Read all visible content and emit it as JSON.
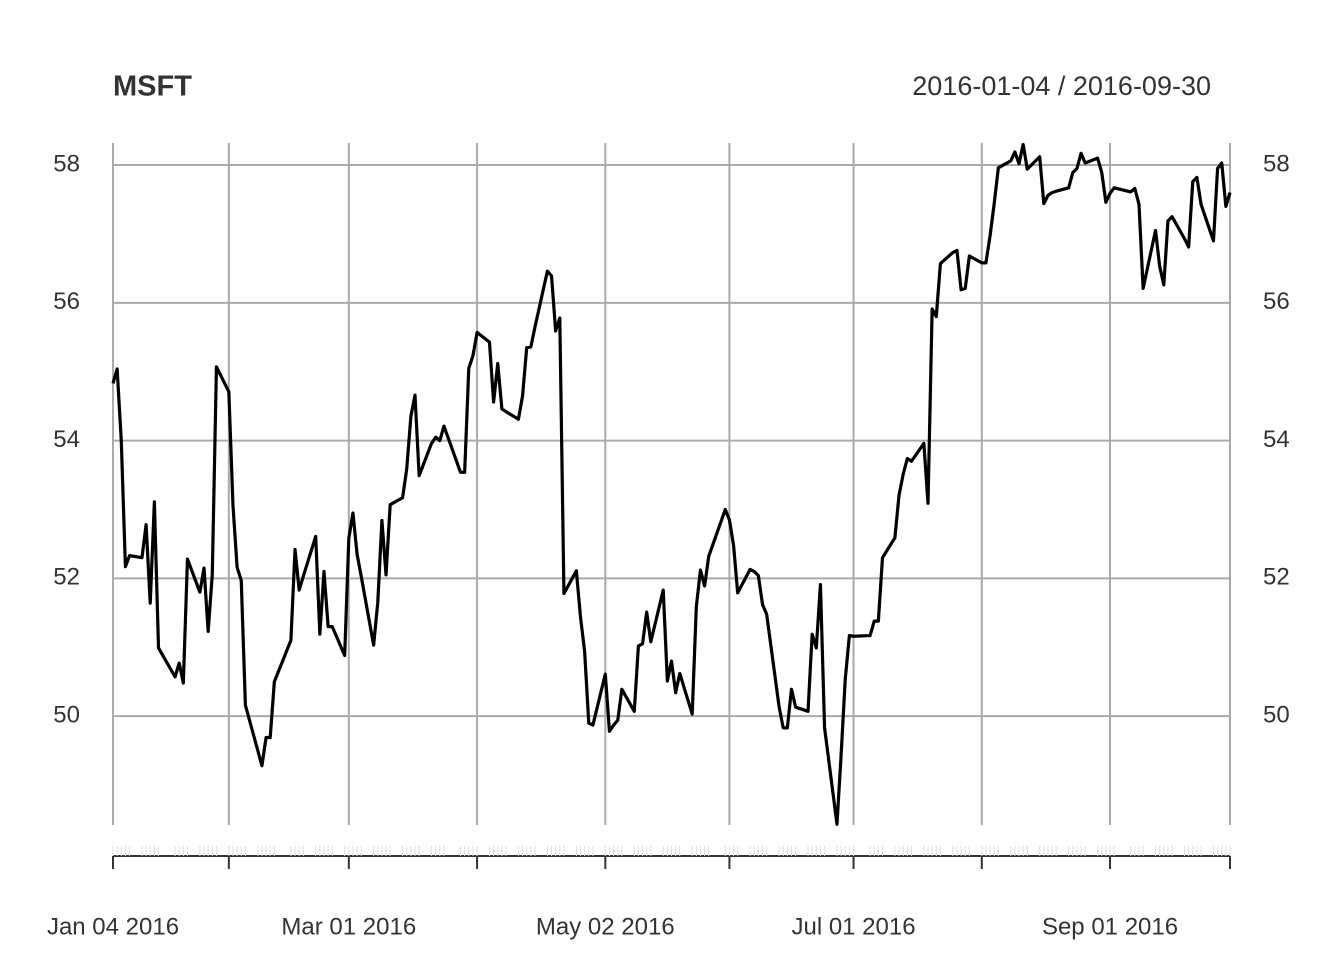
{
  "chart_data": {
    "type": "line",
    "title": "MSFT",
    "subtitle": "2016-01-04 / 2016-09-30",
    "color": "#000000",
    "grid": true,
    "xlim": [
      "2016-01-04",
      "2016-09-30"
    ],
    "xticks": [
      {
        "value": "2016-01-04",
        "label": "Jan 04 2016"
      },
      {
        "value": "2016-02-01"
      },
      {
        "value": "2016-03-01",
        "label": "Mar 01 2016"
      },
      {
        "value": "2016-04-01"
      },
      {
        "value": "2016-05-02",
        "label": "May 02 2016"
      },
      {
        "value": "2016-06-01"
      },
      {
        "value": "2016-07-01",
        "label": "Jul 01 2016"
      },
      {
        "value": "2016-08-01"
      },
      {
        "value": "2016-09-01",
        "label": "Sep 01 2016"
      },
      {
        "value": "2016-09-30"
      }
    ],
    "ylim": [
      48.42,
      58.32
    ],
    "yticks": [
      50,
      52,
      54,
      56,
      58
    ],
    "x": [
      "2016-01-04",
      "2016-01-05",
      "2016-01-06",
      "2016-01-07",
      "2016-01-08",
      "2016-01-11",
      "2016-01-12",
      "2016-01-13",
      "2016-01-14",
      "2016-01-15",
      "2016-01-19",
      "2016-01-20",
      "2016-01-21",
      "2016-01-22",
      "2016-01-25",
      "2016-01-26",
      "2016-01-27",
      "2016-01-28",
      "2016-01-29",
      "2016-02-01",
      "2016-02-02",
      "2016-02-03",
      "2016-02-04",
      "2016-02-05",
      "2016-02-08",
      "2016-02-09",
      "2016-02-10",
      "2016-02-11",
      "2016-02-12",
      "2016-02-16",
      "2016-02-17",
      "2016-02-18",
      "2016-02-19",
      "2016-02-22",
      "2016-02-23",
      "2016-02-24",
      "2016-02-25",
      "2016-02-26",
      "2016-02-29",
      "2016-03-01",
      "2016-03-02",
      "2016-03-03",
      "2016-03-04",
      "2016-03-07",
      "2016-03-08",
      "2016-03-09",
      "2016-03-10",
      "2016-03-11",
      "2016-03-14",
      "2016-03-15",
      "2016-03-16",
      "2016-03-17",
      "2016-03-18",
      "2016-03-21",
      "2016-03-22",
      "2016-03-23",
      "2016-03-24",
      "2016-03-28",
      "2016-03-29",
      "2016-03-30",
      "2016-03-31",
      "2016-04-01",
      "2016-04-04",
      "2016-04-05",
      "2016-04-06",
      "2016-04-07",
      "2016-04-08",
      "2016-04-11",
      "2016-04-12",
      "2016-04-13",
      "2016-04-14",
      "2016-04-15",
      "2016-04-18",
      "2016-04-19",
      "2016-04-20",
      "2016-04-21",
      "2016-04-22",
      "2016-04-25",
      "2016-04-26",
      "2016-04-27",
      "2016-04-28",
      "2016-04-29",
      "2016-05-02",
      "2016-05-03",
      "2016-05-04",
      "2016-05-05",
      "2016-05-06",
      "2016-05-09",
      "2016-05-10",
      "2016-05-11",
      "2016-05-12",
      "2016-05-13",
      "2016-05-16",
      "2016-05-17",
      "2016-05-18",
      "2016-05-19",
      "2016-05-20",
      "2016-05-23",
      "2016-05-24",
      "2016-05-25",
      "2016-05-26",
      "2016-05-27",
      "2016-05-31",
      "2016-06-01",
      "2016-06-02",
      "2016-06-03",
      "2016-06-06",
      "2016-06-07",
      "2016-06-08",
      "2016-06-09",
      "2016-06-10",
      "2016-06-13",
      "2016-06-14",
      "2016-06-15",
      "2016-06-16",
      "2016-06-17",
      "2016-06-20",
      "2016-06-21",
      "2016-06-22",
      "2016-06-23",
      "2016-06-24",
      "2016-06-27",
      "2016-06-28",
      "2016-06-29",
      "2016-06-30",
      "2016-07-01",
      "2016-07-05",
      "2016-07-06",
      "2016-07-07",
      "2016-07-08",
      "2016-07-11",
      "2016-07-12",
      "2016-07-13",
      "2016-07-14",
      "2016-07-15",
      "2016-07-18",
      "2016-07-19",
      "2016-07-20",
      "2016-07-21",
      "2016-07-22",
      "2016-07-25",
      "2016-07-26",
      "2016-07-27",
      "2016-07-28",
      "2016-07-29",
      "2016-08-01",
      "2016-08-02",
      "2016-08-03",
      "2016-08-04",
      "2016-08-05",
      "2016-08-08",
      "2016-08-09",
      "2016-08-10",
      "2016-08-11",
      "2016-08-12",
      "2016-08-15",
      "2016-08-16",
      "2016-08-17",
      "2016-08-18",
      "2016-08-19",
      "2016-08-22",
      "2016-08-23",
      "2016-08-24",
      "2016-08-25",
      "2016-08-26",
      "2016-08-29",
      "2016-08-30",
      "2016-08-31",
      "2016-09-01",
      "2016-09-02",
      "2016-09-06",
      "2016-09-07",
      "2016-09-08",
      "2016-09-09",
      "2016-09-12",
      "2016-09-13",
      "2016-09-14",
      "2016-09-15",
      "2016-09-16",
      "2016-09-19",
      "2016-09-20",
      "2016-09-21",
      "2016-09-22",
      "2016-09-23",
      "2016-09-26",
      "2016-09-27",
      "2016-09-28",
      "2016-09-29",
      "2016-09-30"
    ],
    "values": [
      54.83,
      55.04,
      54.0,
      52.17,
      52.33,
      52.3,
      52.78,
      51.64,
      53.11,
      50.99,
      50.57,
      50.77,
      50.48,
      52.28,
      51.8,
      52.15,
      51.23,
      52.06,
      55.07,
      54.71,
      53.06,
      52.16,
      51.97,
      50.16,
      49.5,
      49.28,
      49.69,
      49.69,
      50.5,
      51.1,
      52.42,
      51.83,
      52.03,
      52.61,
      51.19,
      52.1,
      51.3,
      51.3,
      50.88,
      52.58,
      52.95,
      52.35,
      52.03,
      51.03,
      51.65,
      52.84,
      52.05,
      53.07,
      53.17,
      53.59,
      54.35,
      54.66,
      53.49,
      53.96,
      54.05,
      54.0,
      54.21,
      53.54,
      53.54,
      55.05,
      55.23,
      55.57,
      55.43,
      54.56,
      55.12,
      54.46,
      54.42,
      54.31,
      54.65,
      55.35,
      55.36,
      55.65,
      56.46,
      56.39,
      55.59,
      55.78,
      51.78,
      52.11,
      51.44,
      50.94,
      49.9,
      49.87,
      50.61,
      49.78,
      49.87,
      49.94,
      50.39,
      50.07,
      51.02,
      51.05,
      51.51,
      51.08,
      51.83,
      50.51,
      50.8,
      50.34,
      50.62,
      50.03,
      51.59,
      52.12,
      51.89,
      52.32,
      53.0,
      52.85,
      52.48,
      51.79,
      52.13,
      52.1,
      52.04,
      51.62,
      51.48,
      50.14,
      49.83,
      49.83,
      50.39,
      50.13,
      50.07,
      51.19,
      50.99,
      51.91,
      49.83,
      48.43,
      49.44,
      50.54,
      51.17,
      51.16,
      51.17,
      51.38,
      51.38,
      52.3,
      52.59,
      53.21,
      53.51,
      53.74,
      53.7,
      53.96,
      53.09,
      55.91,
      55.8,
      56.57,
      56.73,
      56.76,
      56.19,
      56.21,
      56.68,
      56.58,
      56.58,
      56.97,
      57.44,
      57.96,
      58.06,
      58.19,
      58.02,
      58.3,
      57.94,
      58.12,
      57.44,
      57.56,
      57.6,
      57.62,
      57.67,
      57.89,
      57.95,
      58.17,
      58.03,
      58.1,
      57.89,
      57.46,
      57.59,
      57.67,
      57.61,
      57.66,
      57.43,
      56.21,
      57.05,
      56.53,
      56.26,
      57.19,
      57.25,
      56.93,
      56.81,
      57.76,
      57.82,
      57.43,
      56.9,
      57.95,
      58.03,
      57.4,
      57.6
    ]
  }
}
